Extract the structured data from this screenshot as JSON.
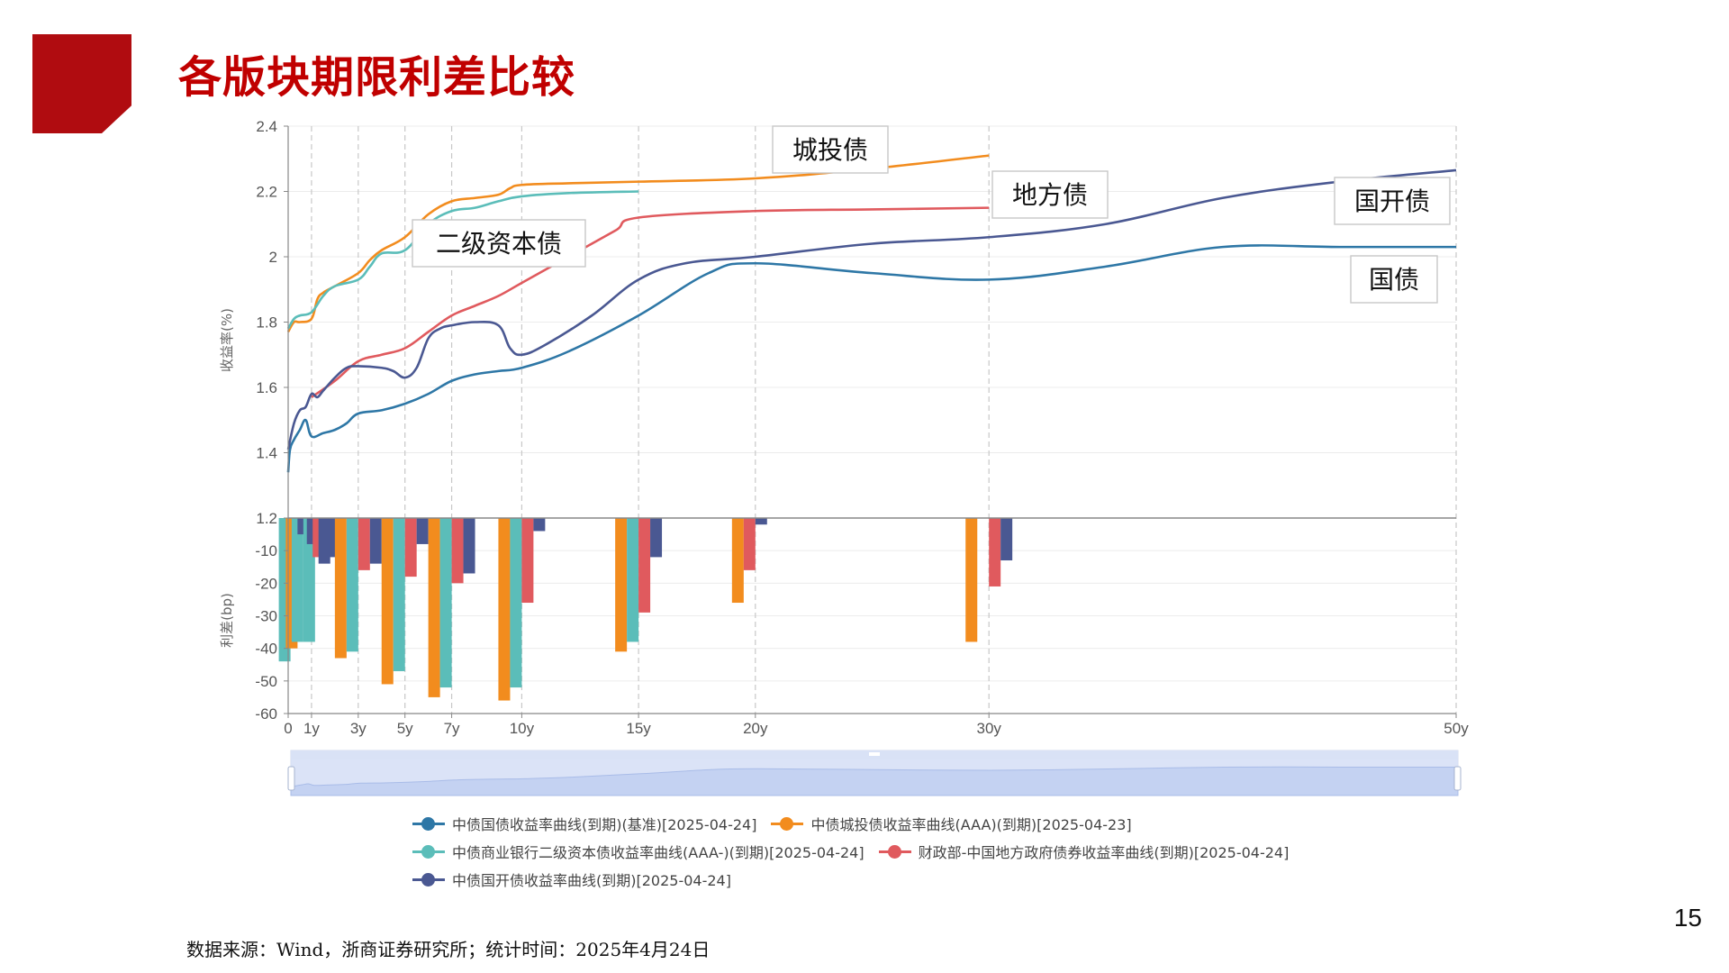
{
  "page": {
    "title": "各版块期限利差比较",
    "page_number": "15",
    "source": "数据来源：Wind，浙商证券研究所；统计时间：2025年4月24日",
    "accent_color": "#b00c10",
    "title_color": "#c00000"
  },
  "chart_data": {
    "type": "line",
    "x_ticks": [
      "0",
      "1y",
      "3y",
      "5y",
      "7y",
      "10y",
      "15y",
      "20y",
      "30y",
      "50y"
    ],
    "x_tick_values": [
      0,
      1,
      3,
      5,
      7,
      10,
      15,
      20,
      30,
      50
    ],
    "top_panel": {
      "ylabel": "收益率(%)",
      "ylim": [
        1.2,
        2.4
      ],
      "y_ticks": [
        "1.2",
        "1.4",
        "1.6",
        "1.8",
        "2",
        "2.2",
        "2.4"
      ],
      "series": [
        {
          "name": "中债国债收益率曲线(到期)(基准)[2025-04-24]",
          "color": "#2e77a6",
          "points": [
            [
              0,
              1.34
            ],
            [
              0.08,
              1.41
            ],
            [
              0.25,
              1.44
            ],
            [
              0.5,
              1.47
            ],
            [
              0.75,
              1.5
            ],
            [
              1,
              1.45
            ],
            [
              1.5,
              1.46
            ],
            [
              2,
              1.47
            ],
            [
              2.5,
              1.49
            ],
            [
              3,
              1.52
            ],
            [
              4,
              1.53
            ],
            [
              5,
              1.55
            ],
            [
              6,
              1.58
            ],
            [
              7,
              1.62
            ],
            [
              8,
              1.64
            ],
            [
              9,
              1.65
            ],
            [
              10,
              1.66
            ],
            [
              12,
              1.71
            ],
            [
              15,
              1.82
            ],
            [
              18,
              1.95
            ],
            [
              20,
              1.98
            ],
            [
              25,
              1.95
            ],
            [
              30,
              1.93
            ],
            [
              35,
              1.97
            ],
            [
              40,
              2.03
            ],
            [
              45,
              2.03
            ],
            [
              50,
              2.03
            ]
          ]
        },
        {
          "name": "中债城投债收益率曲线(AAA)(到期)[2025-04-23]",
          "color": "#f28c1e",
          "points": [
            [
              0,
              1.77
            ],
            [
              0.25,
              1.8
            ],
            [
              0.5,
              1.8
            ],
            [
              1,
              1.81
            ],
            [
              1.25,
              1.87
            ],
            [
              1.5,
              1.89
            ],
            [
              2,
              1.91
            ],
            [
              3,
              1.95
            ],
            [
              3.5,
              1.99
            ],
            [
              4,
              2.02
            ],
            [
              5,
              2.06
            ],
            [
              6,
              2.13
            ],
            [
              7,
              2.17
            ],
            [
              8,
              2.18
            ],
            [
              9,
              2.19
            ],
            [
              9.5,
              2.21
            ],
            [
              10,
              2.22
            ],
            [
              12,
              2.225
            ],
            [
              15,
              2.23
            ],
            [
              20,
              2.24
            ],
            [
              25,
              2.27
            ],
            [
              30,
              2.31
            ]
          ]
        },
        {
          "name": "中债商业银行二级资本债收益率曲线(AAA-)(到期)[2025-04-24]",
          "color": "#5bbdb9",
          "points": [
            [
              0,
              1.78
            ],
            [
              0.25,
              1.81
            ],
            [
              0.5,
              1.82
            ],
            [
              1,
              1.83
            ],
            [
              1.5,
              1.88
            ],
            [
              2,
              1.91
            ],
            [
              3,
              1.93
            ],
            [
              3.5,
              1.97
            ],
            [
              4,
              2.01
            ],
            [
              5,
              2.02
            ],
            [
              6,
              2.1
            ],
            [
              7,
              2.14
            ],
            [
              8,
              2.15
            ],
            [
              9,
              2.17
            ],
            [
              10,
              2.185
            ],
            [
              12,
              2.195
            ],
            [
              15,
              2.2
            ]
          ]
        },
        {
          "name": "财政部-中国地方政府债券收益率曲线(到期)[2025-04-24]",
          "color": "#e05a5e",
          "points": [
            [
              1,
              1.57
            ],
            [
              2,
              1.62
            ],
            [
              3,
              1.68
            ],
            [
              4,
              1.7
            ],
            [
              5,
              1.72
            ],
            [
              6,
              1.77
            ],
            [
              7,
              1.82
            ],
            [
              8,
              1.85
            ],
            [
              9,
              1.88
            ],
            [
              10,
              1.92
            ],
            [
              12,
              2.0
            ],
            [
              14,
              2.08
            ],
            [
              15,
              2.12
            ],
            [
              20,
              2.14
            ],
            [
              25,
              2.145
            ],
            [
              30,
              2.15
            ]
          ]
        },
        {
          "name": "中债国开债收益率曲线(到期)[2025-04-24]",
          "color": "#4a5892",
          "points": [
            [
              0,
              1.41
            ],
            [
              0.25,
              1.49
            ],
            [
              0.5,
              1.53
            ],
            [
              0.75,
              1.54
            ],
            [
              1,
              1.58
            ],
            [
              1.25,
              1.57
            ],
            [
              1.5,
              1.59
            ],
            [
              2,
              1.63
            ],
            [
              2.5,
              1.66
            ],
            [
              3,
              1.665
            ],
            [
              4,
              1.66
            ],
            [
              4.5,
              1.65
            ],
            [
              5,
              1.63
            ],
            [
              5.5,
              1.66
            ],
            [
              6,
              1.75
            ],
            [
              6.5,
              1.78
            ],
            [
              7,
              1.79
            ],
            [
              8,
              1.8
            ],
            [
              9,
              1.79
            ],
            [
              9.5,
              1.72
            ],
            [
              10,
              1.7
            ],
            [
              11,
              1.73
            ],
            [
              13,
              1.82
            ],
            [
              15,
              1.93
            ],
            [
              17,
              1.98
            ],
            [
              20,
              2.0
            ],
            [
              25,
              2.04
            ],
            [
              30,
              2.06
            ],
            [
              35,
              2.1
            ],
            [
              40,
              2.18
            ],
            [
              45,
              2.23
            ],
            [
              50,
              2.265
            ]
          ]
        }
      ],
      "callouts": [
        {
          "label": "城投债",
          "series": 1
        },
        {
          "label": "二级资本债",
          "series": 2
        },
        {
          "label": "地方债",
          "series": 3
        },
        {
          "label": "国开债",
          "series": 4
        },
        {
          "label": "国债",
          "series": 0
        }
      ]
    },
    "bottom_panel": {
      "type": "bar",
      "ylabel": "利差(bp)",
      "ylim": [
        -60,
        0
      ],
      "y_ticks": [
        "-10",
        "-20",
        "-30",
        "-40",
        "-50",
        "-60"
      ],
      "bars": [
        {
          "x": -0.15,
          "value": -44,
          "series": 2
        },
        {
          "x": 0.15,
          "value": -40,
          "series": 1
        },
        {
          "x": 0.4,
          "value": -38,
          "series": 2
        },
        {
          "x": 0.65,
          "value": -5,
          "series": 4
        },
        {
          "x": 0.9,
          "value": -38,
          "series": 2
        },
        {
          "x": 1.05,
          "value": -8,
          "series": 4
        },
        {
          "x": 1.3,
          "value": -12,
          "series": 3
        },
        {
          "x": 1.55,
          "value": -14,
          "series": 4
        },
        {
          "x": 1.85,
          "value": -12,
          "series": 4
        },
        {
          "x": 2.25,
          "value": -43,
          "series": 1
        },
        {
          "x": 2.75,
          "value": -41,
          "series": 2
        },
        {
          "x": 3.25,
          "value": -16,
          "series": 3
        },
        {
          "x": 3.75,
          "value": -14,
          "series": 4
        },
        {
          "x": 4.25,
          "value": -51,
          "series": 1
        },
        {
          "x": 4.75,
          "value": -47,
          "series": 2
        },
        {
          "x": 5.25,
          "value": -18,
          "series": 3
        },
        {
          "x": 5.75,
          "value": -8,
          "series": 4
        },
        {
          "x": 6.25,
          "value": -55,
          "series": 1
        },
        {
          "x": 6.75,
          "value": -52,
          "series": 2
        },
        {
          "x": 7.25,
          "value": -20,
          "series": 3
        },
        {
          "x": 7.75,
          "value": -17,
          "series": 4
        },
        {
          "x": 9.25,
          "value": -56,
          "series": 1
        },
        {
          "x": 9.75,
          "value": -52,
          "series": 2
        },
        {
          "x": 10.25,
          "value": -26,
          "series": 3
        },
        {
          "x": 10.75,
          "value": -4,
          "series": 4
        },
        {
          "x": 14.25,
          "value": -41,
          "series": 1
        },
        {
          "x": 14.75,
          "value": -38,
          "series": 2
        },
        {
          "x": 15.25,
          "value": -29,
          "series": 3
        },
        {
          "x": 15.75,
          "value": -12,
          "series": 4
        },
        {
          "x": 19.25,
          "value": -26,
          "series": 1
        },
        {
          "x": 19.75,
          "value": -16,
          "series": 3
        },
        {
          "x": 20.25,
          "value": -2,
          "series": 4
        },
        {
          "x": 29.25,
          "value": -38,
          "series": 1
        },
        {
          "x": 30.25,
          "value": -21,
          "series": 3
        },
        {
          "x": 30.75,
          "value": -13,
          "series": 4
        }
      ]
    },
    "legend_rows": [
      [
        0,
        1
      ],
      [
        2,
        3
      ],
      [
        4
      ]
    ],
    "grid": true,
    "data_zoom": "bottom"
  }
}
